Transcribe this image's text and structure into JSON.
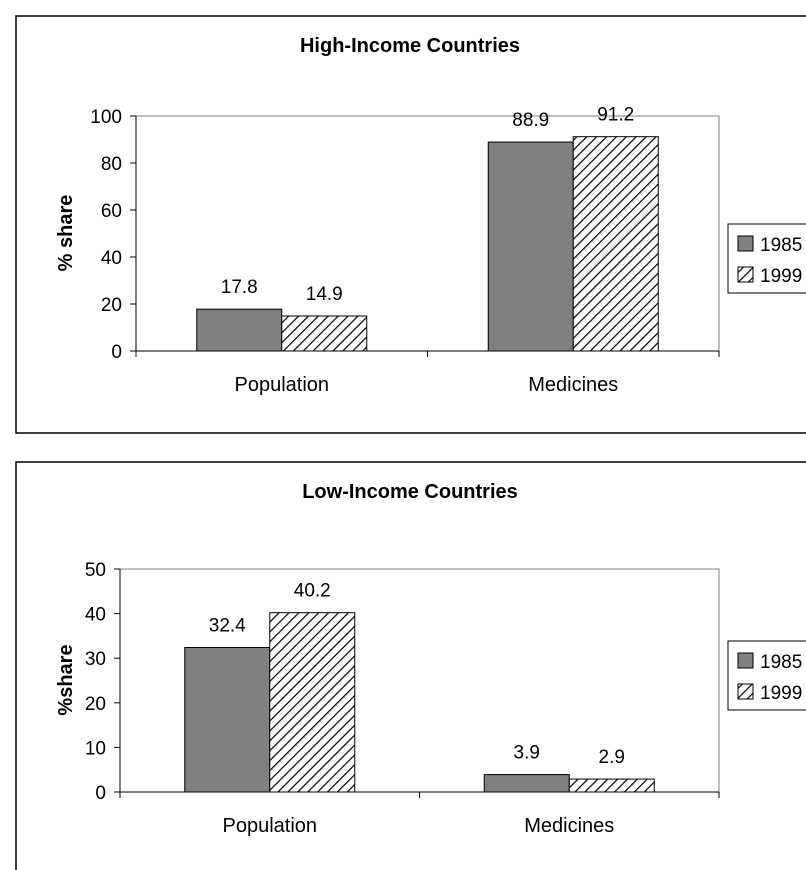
{
  "chart_data": [
    {
      "type": "bar",
      "title": "High-Income Countries",
      "xlabel": "",
      "ylabel": "% share",
      "ylim": [
        0,
        100
      ],
      "yticks": [
        "0",
        "20",
        "40",
        "60",
        "80",
        "100"
      ],
      "categories": [
        "Population",
        "Medicines"
      ],
      "series": [
        {
          "name": "1985",
          "values": [
            17.8,
            88.9
          ],
          "labels": [
            "17.8",
            "88.9"
          ],
          "color": "#808080",
          "pattern": "solid"
        },
        {
          "name": "1999",
          "values": [
            14.9,
            91.2
          ],
          "labels": [
            "14.9",
            "91.2"
          ],
          "color": "#000000",
          "pattern": "diagonal-hatch"
        }
      ],
      "legend": "right",
      "grid": false
    },
    {
      "type": "bar",
      "title": "Low-Income Countries",
      "xlabel": "",
      "ylabel": "%share",
      "ylim": [
        0,
        50
      ],
      "yticks": [
        "0",
        "10",
        "20",
        "30",
        "40",
        "50"
      ],
      "categories": [
        "Population",
        "Medicines"
      ],
      "series": [
        {
          "name": "1985",
          "values": [
            32.4,
            3.9
          ],
          "labels": [
            "32.4",
            "3.9"
          ],
          "color": "#808080",
          "pattern": "solid"
        },
        {
          "name": "1999",
          "values": [
            40.2,
            2.9
          ],
          "labels": [
            "40.2",
            "2.9"
          ],
          "color": "#000000",
          "pattern": "diagonal-hatch"
        }
      ],
      "legend": "right",
      "grid": false
    }
  ]
}
